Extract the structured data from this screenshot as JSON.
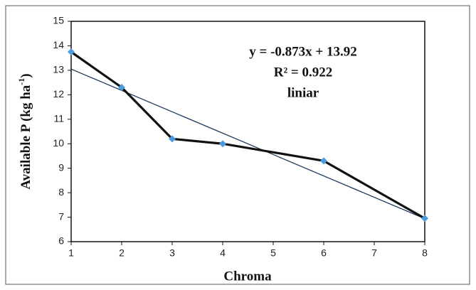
{
  "chart_data": {
    "type": "line",
    "x": [
      1,
      2,
      3,
      4,
      6,
      8
    ],
    "values": [
      13.75,
      12.3,
      10.2,
      10.0,
      9.3,
      6.95
    ],
    "color": "#111111",
    "marker_color": "#4a9be0",
    "trend_x": [
      1,
      8
    ],
    "trend_values": [
      13.05,
      6.94
    ],
    "trend_color": "#1f3a5a",
    "xlim": [
      1,
      8
    ],
    "xticks": [
      1,
      2,
      3,
      4,
      5,
      6,
      7,
      8
    ],
    "ylim": [
      6,
      15
    ],
    "yticks": [
      6,
      7,
      8,
      9,
      10,
      11,
      12,
      13,
      14,
      15
    ],
    "xlabel": "Chroma",
    "ylabel": "Available P (kg ha",
    "ylabel_sup": "-1",
    "ylabel_end": ")",
    "annotations": [
      "y = -0.873x + 13.92",
      "R² = 0.922",
      "liniar"
    ],
    "grid": false
  }
}
